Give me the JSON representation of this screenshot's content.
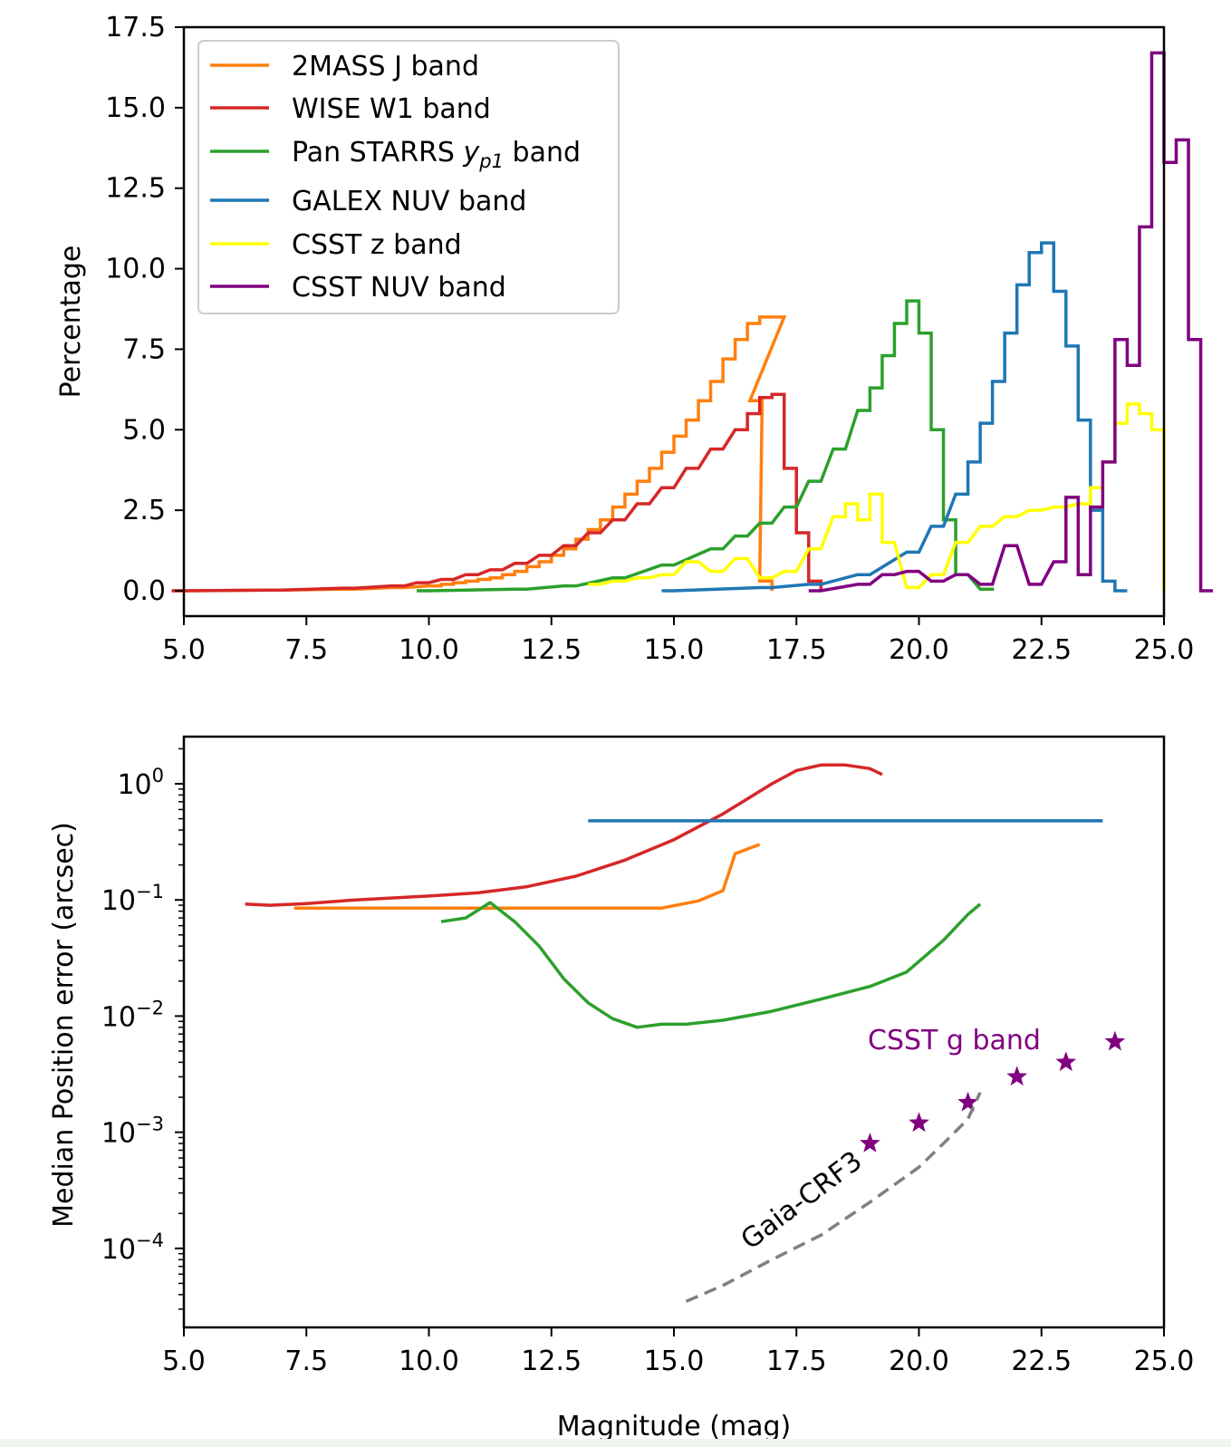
{
  "chart_data": [
    {
      "type": "line",
      "subtype": "step-histogram",
      "xlabel": "",
      "ylabel": "Percentage",
      "xlim": [
        5.0,
        25.0
      ],
      "ylim": [
        0.0,
        17.5
      ],
      "xticks": [
        "5.0",
        "7.5",
        "10.0",
        "12.5",
        "15.0",
        "17.5",
        "20.0",
        "22.5",
        "25.0"
      ],
      "yticks": [
        "0.0",
        "2.5",
        "5.0",
        "7.5",
        "10.0",
        "12.5",
        "15.0",
        "17.5"
      ],
      "legend_position": "upper-left",
      "series": [
        {
          "name": "2MASS J band",
          "color": "#ff7f0e",
          "bin_width": 0.25,
          "bins": [
            [
              5.0,
              0.0
            ],
            [
              7.0,
              0.02
            ],
            [
              8.5,
              0.05
            ],
            [
              9.5,
              0.1
            ],
            [
              10.25,
              0.15
            ],
            [
              10.5,
              0.2
            ],
            [
              10.75,
              0.25
            ],
            [
              11.0,
              0.3
            ],
            [
              11.25,
              0.35
            ],
            [
              11.5,
              0.4
            ],
            [
              11.75,
              0.5
            ],
            [
              12.0,
              0.6
            ],
            [
              12.25,
              0.75
            ],
            [
              12.5,
              0.9
            ],
            [
              12.75,
              1.1
            ],
            [
              13.0,
              1.3
            ],
            [
              13.25,
              1.6
            ],
            [
              13.5,
              1.9
            ],
            [
              13.75,
              2.2
            ],
            [
              14.0,
              2.6
            ],
            [
              14.25,
              3.0
            ],
            [
              14.5,
              3.4
            ],
            [
              14.75,
              3.8
            ],
            [
              15.0,
              4.3
            ],
            [
              15.25,
              4.8
            ],
            [
              15.5,
              5.3
            ],
            [
              15.75,
              5.9
            ],
            [
              16.0,
              6.5
            ],
            [
              16.25,
              7.2
            ],
            [
              16.5,
              7.8
            ],
            [
              16.75,
              8.3
            ],
            [
              17.0,
              8.5
            ],
            [
              17.25,
              8.5
            ],
            [
              16.8,
              5.9
            ],
            [
              17.0,
              0.3
            ]
          ],
          "peak": 8.5
        },
        {
          "name": "WISE W1 band",
          "color": "#d62728",
          "bin_width": 0.25,
          "bins": [
            [
              5.0,
              0.0
            ],
            [
              7.0,
              0.02
            ],
            [
              8.5,
              0.08
            ],
            [
              9.5,
              0.15
            ],
            [
              10.0,
              0.25
            ],
            [
              10.5,
              0.35
            ],
            [
              11.0,
              0.5
            ],
            [
              11.5,
              0.65
            ],
            [
              12.0,
              0.85
            ],
            [
              12.5,
              1.1
            ],
            [
              13.0,
              1.4
            ],
            [
              13.5,
              1.8
            ],
            [
              14.0,
              2.2
            ],
            [
              14.5,
              2.7
            ],
            [
              15.0,
              3.2
            ],
            [
              15.5,
              3.8
            ],
            [
              16.0,
              4.4
            ],
            [
              16.5,
              5.0
            ],
            [
              16.75,
              5.5
            ],
            [
              17.0,
              6.0
            ],
            [
              17.25,
              6.1
            ],
            [
              17.5,
              3.8
            ],
            [
              17.75,
              1.8
            ],
            [
              18.0,
              0.3
            ]
          ],
          "peak": 6.1
        },
        {
          "name": "Pan STARRS y_p1 band",
          "color": "#2ca02c",
          "bin_width": 0.25,
          "bins": [
            [
              10.0,
              0.0
            ],
            [
              12.0,
              0.05
            ],
            [
              13.0,
              0.15
            ],
            [
              14.0,
              0.4
            ],
            [
              15.0,
              0.8
            ],
            [
              16.0,
              1.3
            ],
            [
              16.5,
              1.7
            ],
            [
              17.0,
              2.1
            ],
            [
              17.5,
              2.6
            ],
            [
              18.0,
              3.4
            ],
            [
              18.5,
              4.4
            ],
            [
              19.0,
              5.6
            ],
            [
              19.25,
              6.3
            ],
            [
              19.5,
              7.3
            ],
            [
              19.75,
              8.3
            ],
            [
              20.0,
              9.0
            ],
            [
              20.25,
              8.0
            ],
            [
              20.5,
              5.0
            ],
            [
              20.75,
              2.2
            ],
            [
              21.0,
              0.5
            ],
            [
              21.5,
              0.05
            ]
          ],
          "peak": 9.0
        },
        {
          "name": "GALEX NUV band",
          "color": "#1f77b4",
          "bin_width": 0.25,
          "bins": [
            [
              15.0,
              0.0
            ],
            [
              17.0,
              0.1
            ],
            [
              18.0,
              0.2
            ],
            [
              19.0,
              0.5
            ],
            [
              20.0,
              1.2
            ],
            [
              20.5,
              2.0
            ],
            [
              21.0,
              3.0
            ],
            [
              21.25,
              4.0
            ],
            [
              21.5,
              5.2
            ],
            [
              21.75,
              6.5
            ],
            [
              22.0,
              8.0
            ],
            [
              22.25,
              9.5
            ],
            [
              22.5,
              10.5
            ],
            [
              22.75,
              10.8
            ],
            [
              23.0,
              9.3
            ],
            [
              23.25,
              7.6
            ],
            [
              23.5,
              5.3
            ],
            [
              23.75,
              2.5
            ],
            [
              24.0,
              0.3
            ],
            [
              24.25,
              0.0
            ]
          ],
          "peak": 10.8
        },
        {
          "name": "CSST z band",
          "color": "#ffff00",
          "bin_width": 0.25,
          "bins": [
            [
              13.5,
              0.2
            ],
            [
              14.0,
              0.3
            ],
            [
              14.5,
              0.4
            ],
            [
              15.0,
              0.5
            ],
            [
              15.5,
              0.9
            ],
            [
              16.0,
              0.6
            ],
            [
              16.5,
              1.0
            ],
            [
              17.0,
              0.4
            ],
            [
              17.5,
              0.6
            ],
            [
              18.0,
              1.3
            ],
            [
              18.5,
              2.3
            ],
            [
              18.75,
              2.7
            ],
            [
              19.0,
              2.2
            ],
            [
              19.25,
              3.0
            ],
            [
              19.5,
              1.5
            ],
            [
              20.0,
              0.1
            ],
            [
              20.5,
              0.5
            ],
            [
              21.0,
              1.5
            ],
            [
              21.5,
              2.0
            ],
            [
              22.0,
              2.3
            ],
            [
              22.5,
              2.5
            ],
            [
              23.0,
              2.6
            ],
            [
              23.5,
              2.7
            ],
            [
              23.75,
              3.2
            ],
            [
              24.0,
              4.0
            ],
            [
              24.25,
              5.2
            ],
            [
              24.5,
              5.8
            ],
            [
              24.75,
              5.5
            ],
            [
              25.0,
              5.0
            ]
          ],
          "peak": 5.8
        },
        {
          "name": "CSST NUV band",
          "color": "#800080",
          "bin_width": 0.25,
          "bins": [
            [
              18.0,
              0.0
            ],
            [
              19.0,
              0.2
            ],
            [
              19.5,
              0.5
            ],
            [
              20.0,
              0.6
            ],
            [
              20.5,
              0.3
            ],
            [
              21.0,
              0.5
            ],
            [
              21.5,
              0.2
            ],
            [
              22.0,
              1.4
            ],
            [
              22.5,
              0.2
            ],
            [
              23.0,
              0.9
            ],
            [
              23.25,
              2.9
            ],
            [
              23.5,
              0.5
            ],
            [
              23.75,
              2.6
            ],
            [
              24.0,
              4.0
            ],
            [
              24.25,
              7.8
            ],
            [
              24.5,
              7.0
            ],
            [
              24.75,
              11.3
            ],
            [
              25.0,
              16.7
            ],
            [
              25.25,
              13.3
            ],
            [
              25.5,
              14.0
            ],
            [
              25.75,
              7.8
            ],
            [
              26.0,
              0.0
            ]
          ],
          "peak": 16.7
        }
      ]
    },
    {
      "type": "line",
      "xlabel": "Magnitude (mag)",
      "ylabel": "Median Position error (arcsec)",
      "yscale": "log",
      "xlim": [
        5.0,
        25.0
      ],
      "ylim": [
        3e-05,
        2.0
      ],
      "xticks": [
        "5.0",
        "7.5",
        "10.0",
        "12.5",
        "15.0",
        "17.5",
        "20.0",
        "22.5",
        "25.0"
      ],
      "yticks": [
        {
          "base": "10",
          "exp": "0",
          "value": 1
        },
        {
          "base": "10",
          "exp": "−1",
          "value": 0.1
        },
        {
          "base": "10",
          "exp": "−2",
          "value": 0.01
        },
        {
          "base": "10",
          "exp": "−3",
          "value": 0.001
        },
        {
          "base": "10",
          "exp": "−4",
          "value": 0.0001
        }
      ],
      "series": [
        {
          "color": "#d62728",
          "x": [
            6.25,
            6.75,
            7.5,
            8.5,
            10.0,
            11.0,
            12.0,
            13.0,
            14.0,
            15.0,
            16.0,
            17.0,
            17.5,
            18.0,
            18.5,
            19.0,
            19.25
          ],
          "y": [
            0.092,
            0.09,
            0.093,
            0.1,
            0.108,
            0.115,
            0.13,
            0.16,
            0.22,
            0.33,
            0.55,
            1.0,
            1.3,
            1.45,
            1.45,
            1.35,
            1.2
          ]
        },
        {
          "color": "#1f77b4",
          "x": [
            13.25,
            23.75
          ],
          "y": [
            0.48,
            0.48
          ]
        },
        {
          "color": "#ff7f0e",
          "x": [
            7.25,
            10.0,
            12.0,
            14.75,
            15.5,
            16.0,
            16.25,
            16.75
          ],
          "y": [
            0.085,
            0.085,
            0.085,
            0.085,
            0.098,
            0.12,
            0.25,
            0.3
          ]
        },
        {
          "color": "#2ca02c",
          "x": [
            10.25,
            10.75,
            11.25,
            11.75,
            12.25,
            12.75,
            13.25,
            13.75,
            14.25,
            14.75,
            15.25,
            16.0,
            17.0,
            18.0,
            19.0,
            19.75,
            20.5,
            21.0,
            21.25
          ],
          "y": [
            0.065,
            0.07,
            0.095,
            0.065,
            0.04,
            0.021,
            0.013,
            0.0095,
            0.008,
            0.0085,
            0.0085,
            0.0092,
            0.011,
            0.014,
            0.018,
            0.024,
            0.045,
            0.075,
            0.092
          ]
        },
        {
          "name": "CSST g band",
          "type": "scatter",
          "marker": "star",
          "color": "#800080",
          "x": [
            19.0,
            20.0,
            21.0,
            22.0,
            23.0,
            24.0
          ],
          "y": [
            0.0008,
            0.0012,
            0.0018,
            0.003,
            0.004,
            0.006
          ]
        },
        {
          "name": "Gaia-CRF3",
          "style": "dashed",
          "color": "#808080",
          "x": [
            15.25,
            16.0,
            17.0,
            18.0,
            19.0,
            20.0,
            20.5,
            21.0,
            21.25
          ],
          "y": [
            3.5e-05,
            4.8e-05,
            8e-05,
            0.00013,
            0.00025,
            0.0005,
            0.0008,
            0.0013,
            0.0022
          ]
        }
      ]
    }
  ]
}
